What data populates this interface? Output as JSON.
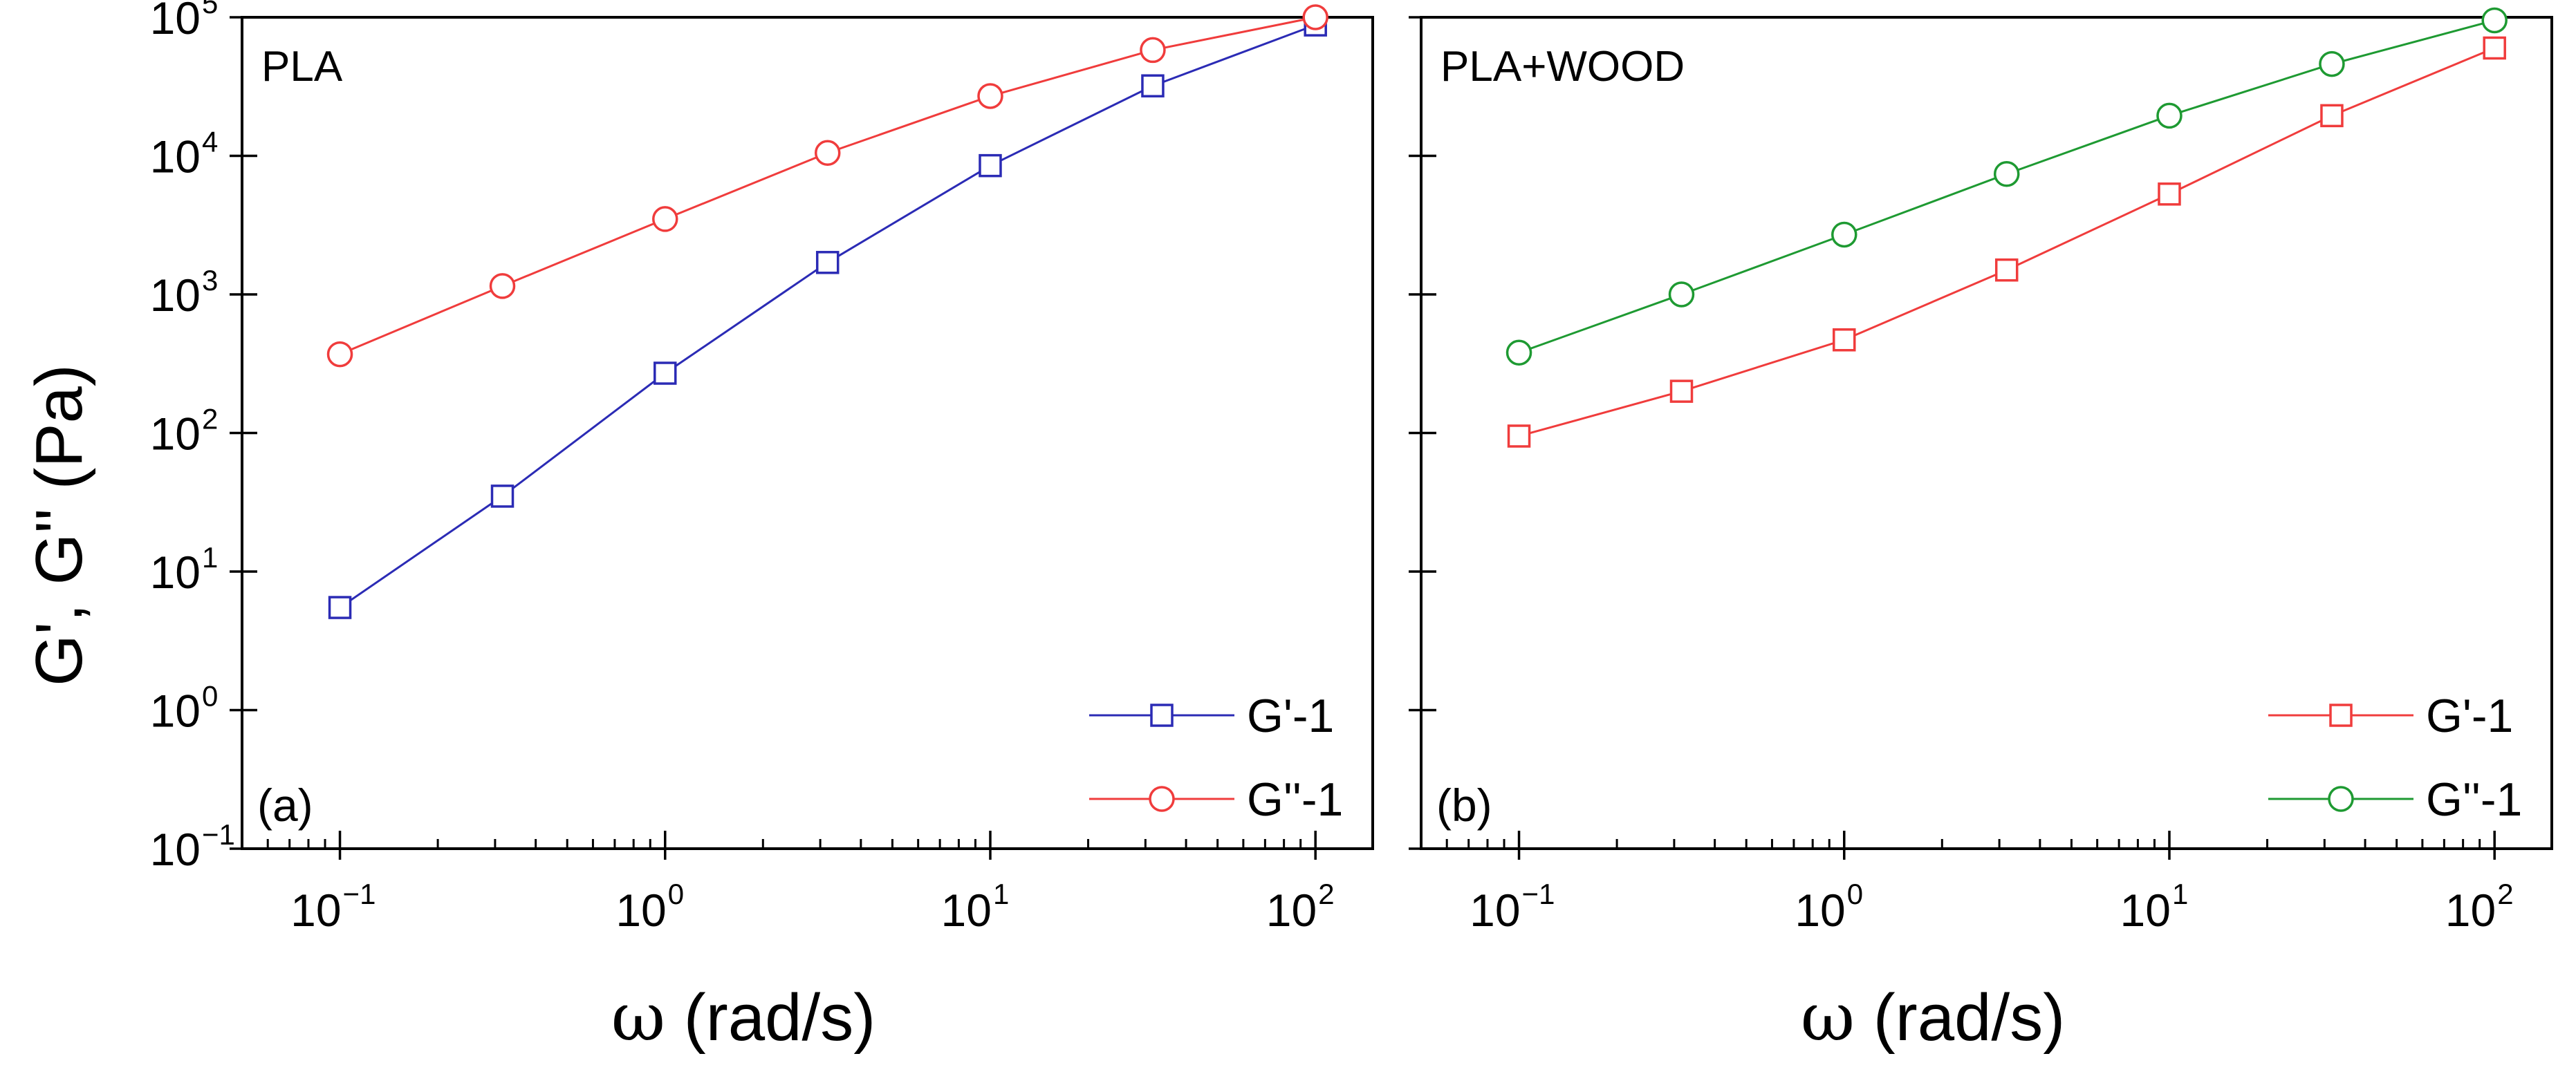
{
  "y_axis_title": "G', G'' (Pa)",
  "x_axis_title": {
    "symbol": "ω",
    "rest": " (rad/s)"
  },
  "colors": {
    "blue": "#2b2bb5",
    "red": "#f03c3c",
    "green": "#1e9a32"
  },
  "chart_data": [
    {
      "type": "line",
      "title": "PLA",
      "tag": "(a)",
      "xscale": "log",
      "yscale": "log",
      "xlim": [
        0.05,
        150
      ],
      "ylim": [
        0.1,
        100000
      ],
      "xticks": [
        0.1,
        1,
        10,
        100
      ],
      "yticks": [
        0.1,
        1,
        10,
        100,
        1000,
        10000,
        100000
      ],
      "xtick_labels": [
        {
          "base": "10",
          "exp": "−1"
        },
        {
          "base": "10",
          "exp": "0"
        },
        {
          "base": "10",
          "exp": "1"
        },
        {
          "base": "10",
          "exp": "2"
        }
      ],
      "ytick_labels": [
        {
          "base": "10",
          "exp": "−1"
        },
        {
          "base": "10",
          "exp": "0"
        },
        {
          "base": "10",
          "exp": "1"
        },
        {
          "base": "10",
          "exp": "2"
        },
        {
          "base": "10",
          "exp": "3"
        },
        {
          "base": "10",
          "exp": "4"
        },
        {
          "base": "10",
          "exp": "5"
        }
      ],
      "x": [
        0.1,
        0.316,
        1,
        3.16,
        10,
        31.6,
        100
      ],
      "legend": "bottom-right",
      "series": [
        {
          "name": "G'-1",
          "color_key": "blue",
          "marker": "square",
          "values": [
            5.5,
            35,
            270,
            1700,
            8500,
            32000,
            88000
          ]
        },
        {
          "name": "G''-1",
          "color_key": "red",
          "marker": "circle",
          "values": [
            370,
            1150,
            3500,
            10500,
            27000,
            58000,
            100000
          ]
        }
      ]
    },
    {
      "type": "line",
      "title": "PLA+WOOD",
      "tag": "(b)",
      "xscale": "log",
      "yscale": "log",
      "xlim": [
        0.05,
        150
      ],
      "ylim": [
        0.1,
        100000
      ],
      "xticks": [
        0.1,
        1,
        10,
        100
      ],
      "yticks": [
        0.1,
        1,
        10,
        100,
        1000,
        10000,
        100000
      ],
      "xtick_labels": [
        {
          "base": "10",
          "exp": "−1"
        },
        {
          "base": "10",
          "exp": "0"
        },
        {
          "base": "10",
          "exp": "1"
        },
        {
          "base": "10",
          "exp": "2"
        }
      ],
      "ytick_labels": [],
      "x": [
        0.1,
        0.316,
        1,
        3.16,
        10,
        31.6,
        100
      ],
      "legend": "bottom-right",
      "series": [
        {
          "name": "G'-1",
          "color_key": "red",
          "marker": "square",
          "values": [
            95,
            200,
            470,
            1500,
            5300,
            19500,
            60000
          ]
        },
        {
          "name": "G''-1",
          "color_key": "green",
          "marker": "circle",
          "values": [
            380,
            1000,
            2700,
            7400,
            19500,
            46000,
            95000
          ]
        }
      ]
    }
  ]
}
